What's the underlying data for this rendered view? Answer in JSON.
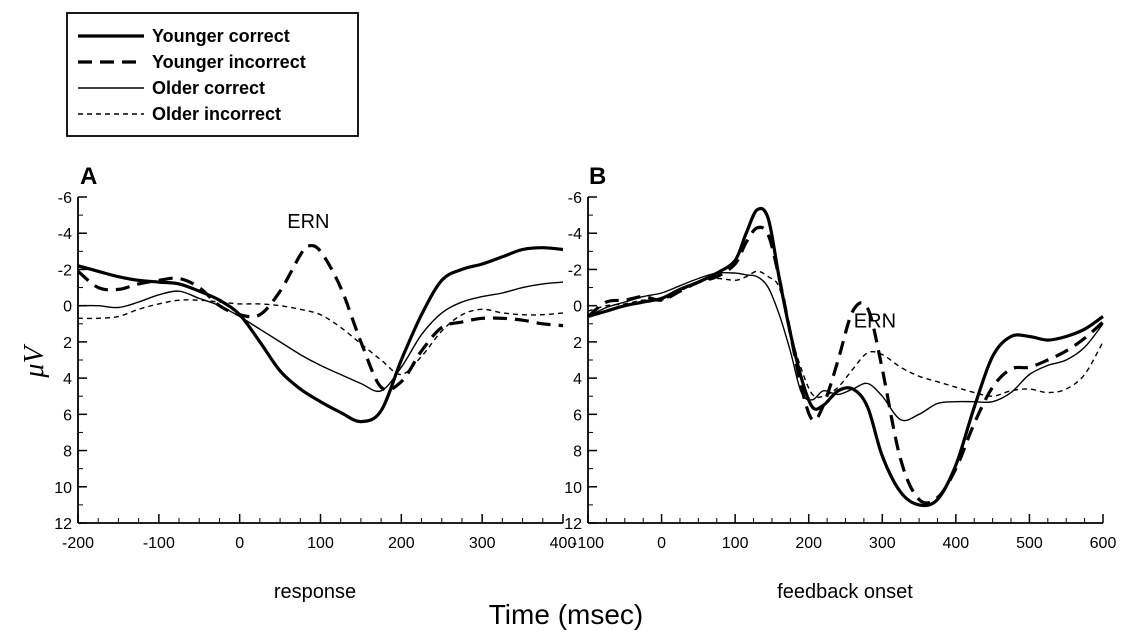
{
  "chart_data": {
    "x_title": "Time (msec)",
    "y_title": "μV",
    "legend": {
      "placement": "top-left",
      "entries": [
        {
          "name": "Younger correct",
          "style": "thick-solid"
        },
        {
          "name": "Younger incorrect",
          "style": "thick-dashed"
        },
        {
          "name": "Older correct",
          "style": "thin-solid"
        },
        {
          "name": "Older incorrect",
          "style": "thin-dashed"
        }
      ]
    },
    "panels": [
      {
        "type": "line",
        "label": "A",
        "xlabel": "response",
        "xlim": [
          -200,
          400
        ],
        "xticks": [
          -200,
          -100,
          0,
          100,
          200,
          300,
          400
        ],
        "ylim": [
          -6,
          12
        ],
        "yticks": [
          -6,
          -4,
          -2,
          0,
          2,
          4,
          6,
          8,
          10,
          12
        ],
        "y_inverted": true,
        "annotation": {
          "text": "ERN",
          "x": 85,
          "y": -4.3
        },
        "series": [
          {
            "name": "Younger correct",
            "x": [
              -200,
              -175,
              -150,
              -125,
              -100,
              -75,
              -50,
              -25,
              0,
              25,
              50,
              75,
              100,
              125,
              150,
              175,
              200,
              225,
              250,
              275,
              300,
              325,
              350,
              375,
              400
            ],
            "y": [
              -2.2,
              -1.9,
              -1.6,
              -1.4,
              -1.3,
              -1.2,
              -0.8,
              -0.3,
              0.5,
              2.0,
              3.6,
              4.6,
              5.3,
              5.9,
              6.4,
              5.8,
              3.0,
              0.5,
              -1.4,
              -2.0,
              -2.3,
              -2.7,
              -3.1,
              -3.2,
              -3.1
            ]
          },
          {
            "name": "Younger incorrect",
            "x": [
              -200,
              -175,
              -150,
              -125,
              -100,
              -75,
              -50,
              -25,
              0,
              25,
              50,
              75,
              85,
              100,
              125,
              150,
              175,
              200,
              225,
              250,
              275,
              300,
              325,
              350,
              375,
              400
            ],
            "y": [
              -1.9,
              -1.0,
              -0.9,
              -1.2,
              -1.4,
              -1.5,
              -1.0,
              0.0,
              0.5,
              0.5,
              -0.8,
              -2.8,
              -3.3,
              -3.0,
              -1.0,
              2.0,
              4.5,
              4.2,
              2.5,
              1.2,
              0.9,
              0.7,
              0.7,
              0.8,
              1.0,
              1.1
            ]
          },
          {
            "name": "Older correct",
            "x": [
              -200,
              -175,
              -150,
              -125,
              -100,
              -75,
              -50,
              -25,
              0,
              25,
              50,
              75,
              100,
              125,
              150,
              175,
              200,
              225,
              250,
              275,
              300,
              325,
              350,
              375,
              400
            ],
            "y": [
              0.0,
              0.0,
              0.1,
              -0.2,
              -0.6,
              -0.8,
              -0.4,
              0.0,
              0.6,
              1.3,
              2.0,
              2.7,
              3.3,
              3.8,
              4.3,
              4.7,
              3.4,
              1.6,
              0.4,
              -0.2,
              -0.5,
              -0.7,
              -1.0,
              -1.2,
              -1.3
            ]
          },
          {
            "name": "Older incorrect",
            "x": [
              -200,
              -175,
              -150,
              -125,
              -100,
              -75,
              -50,
              -25,
              0,
              25,
              50,
              75,
              100,
              125,
              150,
              175,
              200,
              225,
              250,
              275,
              300,
              325,
              350,
              375,
              400
            ],
            "y": [
              0.7,
              0.7,
              0.6,
              0.2,
              -0.1,
              -0.3,
              -0.3,
              -0.2,
              -0.1,
              -0.1,
              0.0,
              0.2,
              0.5,
              1.2,
              2.1,
              3.0,
              3.8,
              2.8,
              1.4,
              0.5,
              0.2,
              0.4,
              0.5,
              0.5,
              0.4
            ]
          }
        ]
      },
      {
        "type": "line",
        "label": "B",
        "xlabel": "feedback onset",
        "xlim": [
          -100,
          600
        ],
        "xticks": [
          -100,
          0,
          100,
          200,
          300,
          400,
          500,
          600
        ],
        "ylim": [
          -6,
          12
        ],
        "yticks": [
          -6,
          -4,
          -2,
          0,
          2,
          4,
          6,
          8,
          10,
          12
        ],
        "y_inverted": true,
        "annotation": {
          "text": "ERN",
          "x": 290,
          "y": 1.2
        },
        "series": [
          {
            "name": "Younger correct",
            "x": [
              -100,
              -75,
              -50,
              -25,
              0,
              25,
              50,
              75,
              100,
              115,
              130,
              145,
              160,
              175,
              190,
              205,
              220,
              240,
              260,
              280,
              300,
              325,
              350,
              375,
              400,
              425,
              450,
              475,
              500,
              525,
              550,
              575,
              600
            ],
            "y": [
              0.6,
              0.3,
              0.0,
              -0.2,
              -0.4,
              -0.9,
              -1.3,
              -1.8,
              -2.5,
              -4.0,
              -5.3,
              -4.8,
              -1.5,
              1.5,
              4.0,
              5.6,
              5.5,
              4.7,
              4.6,
              5.6,
              8.3,
              10.3,
              11.0,
              10.7,
              8.8,
              5.6,
              2.8,
              1.7,
              1.7,
              1.9,
              1.7,
              1.3,
              0.6
            ]
          },
          {
            "name": "Younger incorrect",
            "x": [
              -100,
              -75,
              -50,
              -25,
              0,
              25,
              50,
              75,
              100,
              115,
              130,
              145,
              160,
              175,
              190,
              205,
              220,
              240,
              255,
              265,
              275,
              285,
              300,
              325,
              350,
              375,
              400,
              425,
              450,
              475,
              500,
              525,
              550,
              575,
              600
            ],
            "y": [
              0.6,
              -0.2,
              -0.3,
              -0.5,
              -0.3,
              -0.8,
              -1.3,
              -1.6,
              -2.3,
              -3.5,
              -4.3,
              -3.9,
              -1.5,
              1.5,
              4.5,
              6.3,
              5.5,
              3.0,
              0.8,
              0.0,
              -0.1,
              0.7,
              3.5,
              8.5,
              10.7,
              10.6,
              9.0,
              6.5,
              4.5,
              3.5,
              3.4,
              3.0,
              2.5,
              1.8,
              0.9
            ]
          },
          {
            "name": "Older correct",
            "x": [
              -100,
              -75,
              -50,
              -25,
              0,
              25,
              50,
              75,
              100,
              115,
              130,
              145,
              160,
              175,
              190,
              205,
              220,
              240,
              260,
              280,
              300,
              325,
              350,
              375,
              400,
              425,
              450,
              475,
              500,
              525,
              550,
              575,
              600
            ],
            "y": [
              0.6,
              0.1,
              -0.2,
              -0.5,
              -0.7,
              -1.1,
              -1.5,
              -1.8,
              -1.8,
              -1.7,
              -1.6,
              -1.0,
              0.5,
              2.5,
              4.8,
              5.2,
              4.7,
              4.9,
              4.6,
              4.3,
              5.0,
              6.3,
              6.0,
              5.4,
              5.3,
              5.3,
              5.3,
              4.8,
              3.8,
              3.3,
              3.0,
              2.3,
              1.0
            ]
          },
          {
            "name": "Older incorrect",
            "x": [
              -100,
              -75,
              -50,
              -25,
              0,
              25,
              50,
              75,
              100,
              115,
              130,
              145,
              160,
              175,
              190,
              205,
              220,
              240,
              260,
              280,
              300,
              325,
              350,
              375,
              400,
              425,
              450,
              475,
              500,
              525,
              550,
              575,
              600
            ],
            "y": [
              0.3,
              0.0,
              -0.1,
              -0.3,
              -0.3,
              -0.8,
              -1.3,
              -1.5,
              -1.4,
              -1.6,
              -1.9,
              -1.6,
              -1.0,
              1.5,
              3.5,
              4.9,
              5.0,
              4.5,
              3.5,
              2.6,
              2.7,
              3.4,
              3.9,
              4.2,
              4.5,
              4.8,
              5.0,
              4.7,
              4.6,
              4.8,
              4.6,
              3.8,
              2.0
            ]
          }
        ]
      }
    ]
  }
}
